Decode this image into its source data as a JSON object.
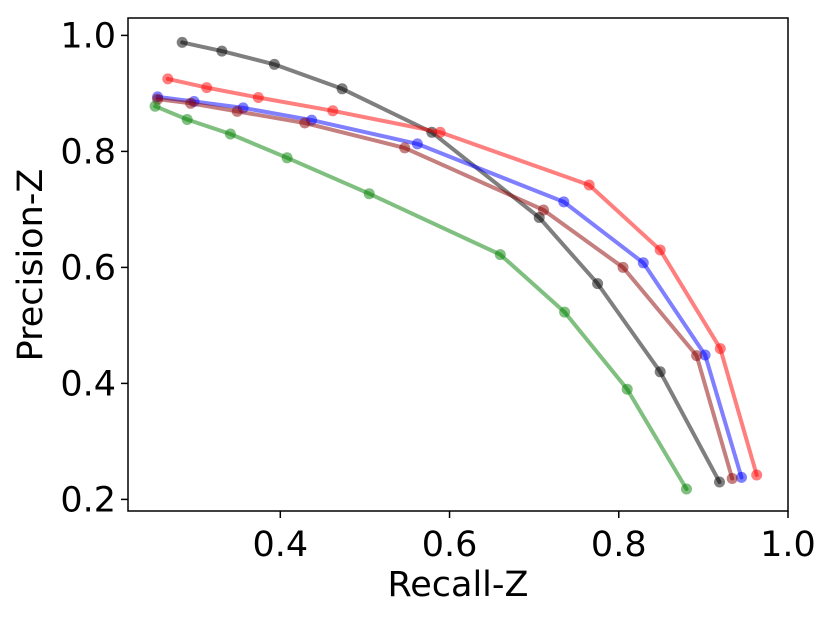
{
  "chart_data": {
    "type": "line",
    "title": "",
    "xlabel": "Recall-Z",
    "ylabel": "Precision-Z",
    "xlim": [
      0.22,
      1.0
    ],
    "ylim": [
      0.18,
      1.03
    ],
    "xticks": [
      0.4,
      0.6,
      0.8,
      1.0
    ],
    "xtick_labels": [
      "0.4",
      "0.6",
      "0.8",
      "1.0"
    ],
    "yticks": [
      0.2,
      0.4,
      0.6,
      0.8,
      1.0
    ],
    "ytick_labels": [
      "0.2",
      "0.4",
      "0.6",
      "0.8",
      "1.0"
    ],
    "grid": false,
    "legend": "none",
    "series": [
      {
        "name": "black",
        "color": "#000000",
        "x": [
          0.284,
          0.331,
          0.393,
          0.473,
          0.579,
          0.706,
          0.775,
          0.849,
          0.919
        ],
        "y": [
          0.988,
          0.973,
          0.95,
          0.908,
          0.833,
          0.686,
          0.572,
          0.42,
          0.23
        ]
      },
      {
        "name": "red",
        "color": "#ff0000",
        "x": [
          0.267,
          0.313,
          0.374,
          0.462,
          0.589,
          0.765,
          0.849,
          0.92,
          0.963
        ],
        "y": [
          0.925,
          0.91,
          0.893,
          0.87,
          0.833,
          0.742,
          0.63,
          0.46,
          0.242
        ]
      },
      {
        "name": "blue",
        "color": "#0000ff",
        "x": [
          0.255,
          0.298,
          0.356,
          0.437,
          0.562,
          0.735,
          0.829,
          0.902,
          0.945
        ],
        "y": [
          0.894,
          0.886,
          0.875,
          0.854,
          0.813,
          0.713,
          0.608,
          0.449,
          0.238
        ]
      },
      {
        "name": "brown",
        "color": "#8b0000",
        "x": [
          0.255,
          0.294,
          0.349,
          0.429,
          0.547,
          0.711,
          0.805,
          0.892,
          0.934
        ],
        "y": [
          0.89,
          0.883,
          0.869,
          0.849,
          0.806,
          0.699,
          0.6,
          0.448,
          0.236
        ]
      },
      {
        "name": "green",
        "color": "#008000",
        "x": [
          0.252,
          0.29,
          0.341,
          0.408,
          0.505,
          0.66,
          0.736,
          0.81,
          0.88
        ],
        "y": [
          0.878,
          0.855,
          0.83,
          0.789,
          0.727,
          0.622,
          0.523,
          0.39,
          0.218
        ]
      }
    ]
  }
}
